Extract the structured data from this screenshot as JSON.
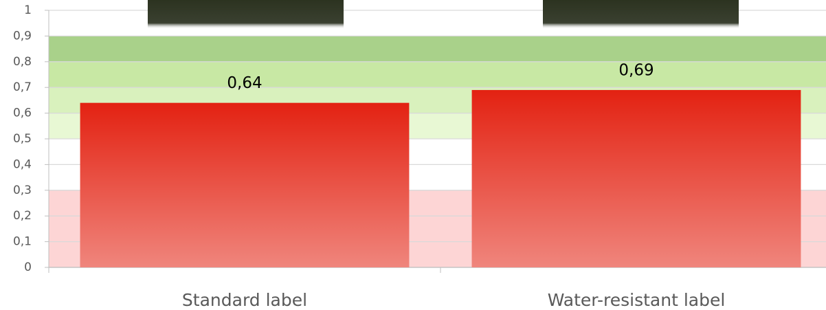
{
  "chart_data": {
    "type": "bar",
    "categories": [
      "Standard label",
      "Water-resistant label"
    ],
    "values": [
      0.64,
      0.69
    ],
    "value_labels": [
      "0,64",
      "0,69"
    ],
    "color": "#e32212",
    "ylim": [
      0,
      1
    ],
    "yticks": [
      0,
      {
        "value": 0.1,
        "label": "0,1"
      },
      {
        "value": 0.2,
        "label": "0,2"
      },
      {
        "value": 0.3,
        "label": "0,3"
      },
      {
        "value": 0.4,
        "label": "0,4"
      },
      {
        "value": 0.5,
        "label": "0,5"
      },
      {
        "value": 0.6,
        "label": "0,6"
      },
      {
        "value": 0.7,
        "label": "0,7"
      },
      {
        "value": 0.8,
        "label": "0,8"
      },
      {
        "value": 0.9,
        "label": "0,9"
      },
      1
    ],
    "grid": true,
    "bands": [
      {
        "from": 0,
        "to": 0.3,
        "color": "#fdd5d5"
      },
      {
        "from": 0.5,
        "to": 0.6,
        "color": "#e8f8d4"
      },
      {
        "from": 0.6,
        "to": 0.7,
        "color": "#d9f1bd"
      },
      {
        "from": 0.7,
        "to": 0.8,
        "color": "#c8e8a4"
      },
      {
        "from": 0.8,
        "to": 0.9,
        "color": "#a9d18a"
      }
    ]
  }
}
